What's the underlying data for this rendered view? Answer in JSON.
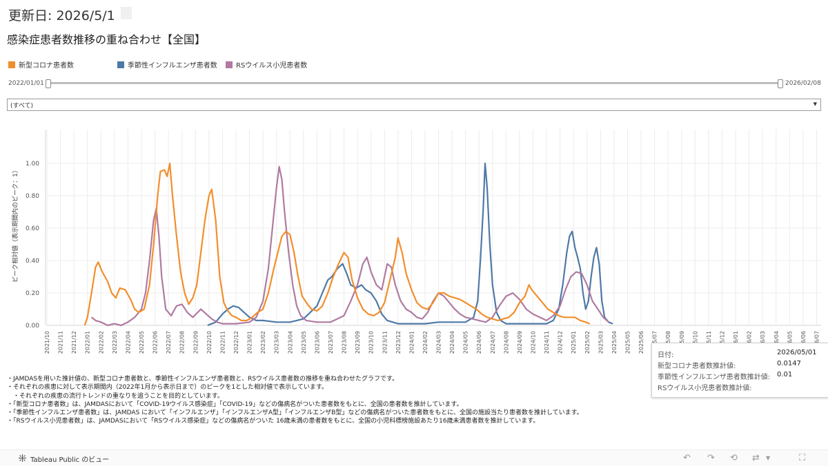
{
  "header": {
    "updated": "更新日: 2026/5/1",
    "title": "感染症患者数推移の重ね合わせ【全国】"
  },
  "legend": [
    {
      "label": "新型コロナ患者数",
      "color": "#f28e2b"
    },
    {
      "label": "季節性インフルエンザ患者数",
      "color": "#4e79a7"
    },
    {
      "label": "RSウイルス小児患者数",
      "color": "#b07aa1"
    }
  ],
  "slider": {
    "start": "2022/01/01",
    "end": "2026/02/08"
  },
  "filter": {
    "value": "(すべて)"
  },
  "chart_data": {
    "type": "line",
    "ylabel": "ピーク相対値（表示期間内のピーク：1）",
    "ylim": [
      0,
      1.0
    ],
    "yticks": [
      "0.00",
      "0.20",
      "0.40",
      "0.60",
      "0.80",
      "1.00"
    ],
    "x_ticks": [
      "2021/10",
      "2021/11",
      "2021/12",
      "2022/01",
      "2022/02",
      "2022/03",
      "2022/04",
      "2022/05",
      "2022/06",
      "2022/07",
      "2022/08",
      "2022/09",
      "2022/10",
      "2022/11",
      "2022/12",
      "2023/01",
      "2023/02",
      "2023/03",
      "2023/04",
      "2023/05",
      "2023/06",
      "2023/07",
      "2023/08",
      "2023/09",
      "2023/10",
      "2023/11",
      "2023/12",
      "2024/01",
      "2024/02",
      "2024/03",
      "2024/04",
      "2024/05",
      "2024/06",
      "2024/07",
      "2024/08",
      "2024/09",
      "2024/10",
      "2024/11",
      "2024/12",
      "2025/01",
      "2025/02",
      "2025/03",
      "2025/04",
      "2025/05",
      "2025/06",
      "2025/07",
      "2025/08",
      "2025/09",
      "2025/10",
      "2025/11",
      "2025/12",
      "2026/01",
      "2026/02",
      "2026/03",
      "2026/04",
      "2026/05",
      "2026/06",
      "2026/07"
    ],
    "series": [
      {
        "name": "新型コロナ患者数",
        "color": "#f28e2b",
        "points": [
          [
            2.8,
            0
          ],
          [
            3.0,
            0.05
          ],
          [
            3.3,
            0.2
          ],
          [
            3.6,
            0.36
          ],
          [
            3.8,
            0.39
          ],
          [
            4.1,
            0.33
          ],
          [
            4.5,
            0.27
          ],
          [
            4.8,
            0.2
          ],
          [
            5.1,
            0.17
          ],
          [
            5.4,
            0.23
          ],
          [
            5.8,
            0.22
          ],
          [
            6.2,
            0.16
          ],
          [
            6.5,
            0.1
          ],
          [
            6.8,
            0.08
          ],
          [
            7.2,
            0.1
          ],
          [
            7.6,
            0.25
          ],
          [
            7.9,
            0.5
          ],
          [
            8.2,
            0.8
          ],
          [
            8.4,
            0.95
          ],
          [
            8.7,
            0.96
          ],
          [
            8.9,
            0.92
          ],
          [
            9.1,
            1.0
          ],
          [
            9.3,
            0.8
          ],
          [
            9.6,
            0.55
          ],
          [
            9.9,
            0.33
          ],
          [
            10.2,
            0.2
          ],
          [
            10.5,
            0.13
          ],
          [
            10.8,
            0.17
          ],
          [
            11.1,
            0.25
          ],
          [
            11.4,
            0.45
          ],
          [
            11.7,
            0.65
          ],
          [
            12.0,
            0.8
          ],
          [
            12.2,
            0.84
          ],
          [
            12.5,
            0.65
          ],
          [
            12.8,
            0.3
          ],
          [
            13.1,
            0.14
          ],
          [
            13.4,
            0.09
          ],
          [
            13.7,
            0.06
          ],
          [
            14.0,
            0.05
          ],
          [
            14.4,
            0.03
          ],
          [
            14.8,
            0.03
          ],
          [
            15.2,
            0.05
          ],
          [
            15.6,
            0.08
          ],
          [
            16.0,
            0.1
          ],
          [
            16.4,
            0.2
          ],
          [
            16.8,
            0.35
          ],
          [
            17.1,
            0.45
          ],
          [
            17.4,
            0.55
          ],
          [
            17.7,
            0.58
          ],
          [
            18.0,
            0.56
          ],
          [
            18.3,
            0.45
          ],
          [
            18.6,
            0.3
          ],
          [
            18.9,
            0.18
          ],
          [
            19.3,
            0.13
          ],
          [
            19.6,
            0.1
          ],
          [
            20.0,
            0.09
          ],
          [
            20.4,
            0.12
          ],
          [
            20.8,
            0.2
          ],
          [
            21.2,
            0.3
          ],
          [
            21.6,
            0.38
          ],
          [
            22.0,
            0.45
          ],
          [
            22.3,
            0.42
          ],
          [
            22.6,
            0.28
          ],
          [
            23.0,
            0.17
          ],
          [
            23.4,
            0.1
          ],
          [
            23.8,
            0.07
          ],
          [
            24.2,
            0.06
          ],
          [
            24.6,
            0.08
          ],
          [
            25.0,
            0.14
          ],
          [
            25.4,
            0.28
          ],
          [
            25.8,
            0.42
          ],
          [
            26.0,
            0.54
          ],
          [
            26.3,
            0.45
          ],
          [
            26.6,
            0.32
          ],
          [
            27.0,
            0.22
          ],
          [
            27.4,
            0.14
          ],
          [
            27.8,
            0.11
          ],
          [
            28.2,
            0.1
          ],
          [
            28.6,
            0.14
          ],
          [
            29.0,
            0.2
          ],
          [
            29.4,
            0.2
          ],
          [
            29.8,
            0.18
          ],
          [
            30.2,
            0.17
          ],
          [
            30.6,
            0.16
          ],
          [
            31.0,
            0.14
          ],
          [
            31.4,
            0.12
          ],
          [
            31.8,
            0.1
          ],
          [
            32.2,
            0.07
          ],
          [
            32.6,
            0.05
          ],
          [
            33.0,
            0.04
          ],
          [
            33.4,
            0.03
          ],
          [
            33.8,
            0.04
          ],
          [
            34.2,
            0.05
          ],
          [
            34.6,
            0.08
          ],
          [
            35.0,
            0.14
          ],
          [
            35.4,
            0.18
          ],
          [
            35.7,
            0.25
          ],
          [
            35.9,
            0.22
          ],
          [
            36.3,
            0.18
          ],
          [
            36.7,
            0.14
          ],
          [
            37.1,
            0.1
          ],
          [
            37.5,
            0.08
          ],
          [
            37.9,
            0.06
          ],
          [
            38.3,
            0.05
          ],
          [
            38.7,
            0.05
          ],
          [
            39.1,
            0.05
          ],
          [
            39.5,
            0.03
          ],
          [
            39.9,
            0.02
          ],
          [
            40.2,
            0.01
          ]
        ]
      },
      {
        "name": "季節性インフルエンザ患者数",
        "color": "#4e79a7",
        "points": [
          [
            11.9,
            0
          ],
          [
            12.5,
            0.02
          ],
          [
            13.0,
            0.07
          ],
          [
            13.4,
            0.1
          ],
          [
            13.8,
            0.12
          ],
          [
            14.2,
            0.11
          ],
          [
            14.6,
            0.08
          ],
          [
            15.0,
            0.05
          ],
          [
            15.5,
            0.03
          ],
          [
            16.0,
            0.03
          ],
          [
            17.0,
            0.02
          ],
          [
            18.0,
            0.02
          ],
          [
            19.0,
            0.04
          ],
          [
            19.5,
            0.08
          ],
          [
            20.0,
            0.12
          ],
          [
            20.4,
            0.2
          ],
          [
            20.8,
            0.28
          ],
          [
            21.1,
            0.3
          ],
          [
            21.5,
            0.35
          ],
          [
            21.9,
            0.38
          ],
          [
            22.2,
            0.32
          ],
          [
            22.5,
            0.25
          ],
          [
            22.9,
            0.23
          ],
          [
            23.3,
            0.25
          ],
          [
            23.6,
            0.22
          ],
          [
            24.0,
            0.2
          ],
          [
            24.4,
            0.15
          ],
          [
            24.8,
            0.07
          ],
          [
            25.2,
            0.03
          ],
          [
            26,
            0.01
          ],
          [
            27,
            0.01
          ],
          [
            28,
            0.01
          ],
          [
            29,
            0.02
          ],
          [
            30,
            0.02
          ],
          [
            31.0,
            0.02
          ],
          [
            31.6,
            0.05
          ],
          [
            31.9,
            0.15
          ],
          [
            32.1,
            0.4
          ],
          [
            32.3,
            0.7
          ],
          [
            32.45,
            1.0
          ],
          [
            32.6,
            0.85
          ],
          [
            32.8,
            0.5
          ],
          [
            33.0,
            0.25
          ],
          [
            33.3,
            0.08
          ],
          [
            33.6,
            0.03
          ],
          [
            34.0,
            0.01
          ],
          [
            35,
            0.01
          ],
          [
            36,
            0.01
          ],
          [
            37,
            0.01
          ],
          [
            37.5,
            0.03
          ],
          [
            37.9,
            0.1
          ],
          [
            38.2,
            0.25
          ],
          [
            38.5,
            0.45
          ],
          [
            38.7,
            0.55
          ],
          [
            38.9,
            0.58
          ],
          [
            39.1,
            0.48
          ],
          [
            39.3,
            0.42
          ],
          [
            39.5,
            0.35
          ],
          [
            39.7,
            0.2
          ],
          [
            39.9,
            0.1
          ],
          [
            40.1,
            0.15
          ],
          [
            40.3,
            0.3
          ],
          [
            40.5,
            0.42
          ],
          [
            40.7,
            0.48
          ],
          [
            40.9,
            0.38
          ],
          [
            41.1,
            0.15
          ],
          [
            41.3,
            0.05
          ],
          [
            41.6,
            0.02
          ],
          [
            41.9,
            0.01
          ]
        ]
      },
      {
        "name": "RSウイルス小児患者数",
        "color": "#b07aa1",
        "points": [
          [
            3.3,
            0.05
          ],
          [
            3.6,
            0.03
          ],
          [
            4.0,
            0.02
          ],
          [
            4.5,
            0.0
          ],
          [
            5.0,
            0.01
          ],
          [
            5.5,
            0.0
          ],
          [
            6.0,
            0.02
          ],
          [
            6.5,
            0.05
          ],
          [
            7.0,
            0.1
          ],
          [
            7.3,
            0.2
          ],
          [
            7.6,
            0.4
          ],
          [
            7.9,
            0.65
          ],
          [
            8.1,
            0.72
          ],
          [
            8.3,
            0.55
          ],
          [
            8.5,
            0.3
          ],
          [
            8.8,
            0.1
          ],
          [
            9.2,
            0.06
          ],
          [
            9.6,
            0.12
          ],
          [
            10.0,
            0.13
          ],
          [
            10.4,
            0.08
          ],
          [
            10.8,
            0.05
          ],
          [
            11.4,
            0.1
          ],
          [
            11.8,
            0.07
          ],
          [
            12.2,
            0.04
          ],
          [
            12.6,
            0.02
          ],
          [
            13.0,
            0.01
          ],
          [
            14.0,
            0.01
          ],
          [
            15.0,
            0.02
          ],
          [
            15.5,
            0.05
          ],
          [
            16.0,
            0.15
          ],
          [
            16.4,
            0.35
          ],
          [
            16.7,
            0.6
          ],
          [
            17.0,
            0.85
          ],
          [
            17.2,
            0.98
          ],
          [
            17.4,
            0.9
          ],
          [
            17.6,
            0.7
          ],
          [
            17.9,
            0.45
          ],
          [
            18.2,
            0.25
          ],
          [
            18.5,
            0.12
          ],
          [
            18.8,
            0.06
          ],
          [
            19.2,
            0.03
          ],
          [
            20,
            0.02
          ],
          [
            21,
            0.02
          ],
          [
            21.5,
            0.04
          ],
          [
            22.0,
            0.06
          ],
          [
            22.5,
            0.15
          ],
          [
            23.0,
            0.25
          ],
          [
            23.4,
            0.38
          ],
          [
            23.7,
            0.42
          ],
          [
            24.0,
            0.33
          ],
          [
            24.4,
            0.25
          ],
          [
            24.8,
            0.22
          ],
          [
            25.2,
            0.38
          ],
          [
            25.5,
            0.36
          ],
          [
            25.8,
            0.25
          ],
          [
            26.2,
            0.15
          ],
          [
            26.6,
            0.1
          ],
          [
            27.0,
            0.08
          ],
          [
            27.4,
            0.05
          ],
          [
            27.8,
            0.04
          ],
          [
            28.2,
            0.08
          ],
          [
            28.6,
            0.15
          ],
          [
            29.0,
            0.2
          ],
          [
            29.4,
            0.18
          ],
          [
            29.8,
            0.14
          ],
          [
            30.2,
            0.1
          ],
          [
            30.6,
            0.07
          ],
          [
            31.0,
            0.05
          ],
          [
            31.5,
            0.04
          ],
          [
            32,
            0.03
          ],
          [
            32.5,
            0.02
          ],
          [
            33,
            0.05
          ],
          [
            33.5,
            0.12
          ],
          [
            34.0,
            0.18
          ],
          [
            34.5,
            0.2
          ],
          [
            35.0,
            0.16
          ],
          [
            35.5,
            0.1
          ],
          [
            36.0,
            0.07
          ],
          [
            36.5,
            0.05
          ],
          [
            37.0,
            0.03
          ],
          [
            37.5,
            0.06
          ],
          [
            38.0,
            0.12
          ],
          [
            38.4,
            0.22
          ],
          [
            38.8,
            0.3
          ],
          [
            39.2,
            0.33
          ],
          [
            39.6,
            0.32
          ],
          [
            40.0,
            0.25
          ],
          [
            40.4,
            0.15
          ],
          [
            40.8,
            0.1
          ],
          [
            41.2,
            0.05
          ],
          [
            41.6,
            0.02
          ]
        ]
      }
    ]
  },
  "notes": [
    "・JAMDASを用いた推計値の、新型コロナ患者数と、季節性インフルエンザ患者数と、RSウイルス患者数の推移を重ね合わせたグラフです。",
    "・それぞれの疾患に対して表示期間内（2022年1月から表示日まで）のピークを1とした相対値で表示しています。",
    "　・それぞれの疾患の流行トレンドの重なりを追うことを目的としています。",
    "・「新型コロナ患者数」は、JAMDASにおいて「COVID-19ウイルス感染症」「COVID-19」などの傷病名がついた患者数をもとに、全国の患者数を推計しています。",
    "・「季節性インフルエンザ患者数」は、JAMDAS において「インフルエンザ」「インフルエンザA型」「インフルエンザB型」などの傷病名がついた患者数をもとに、全国の施設当たり患者数を推計しています。",
    "・「RSウイルス小児患者数」は、JAMDASにおいて「RSウイルス感染症」などの傷病名がついた 16歳未満の患者数をもとに、全国の小児科標榜施設あたり16歳未満患者数を推計しています。"
  ],
  "tooltip": {
    "date_label": "日付:",
    "date_value": "2026/05/01",
    "covid_label": "新型コロナ患者数推計値:",
    "covid_value": "0.0147",
    "flu_label": "季節性インフルエンザ患者数推計値:",
    "flu_value": "0.01",
    "rsv_label": "RSウイルス小児患者数推計値:",
    "rsv_value": ""
  },
  "footer": {
    "label": "Tableau Public のビュー"
  }
}
